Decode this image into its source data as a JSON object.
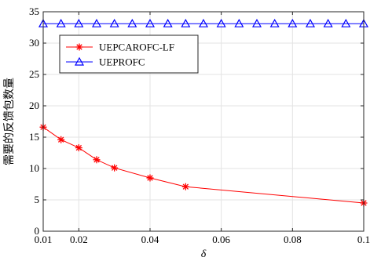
{
  "chart_data": {
    "type": "line",
    "xlabel": "δ",
    "ylabel": "需要的反馈包数量",
    "xlim": [
      0.01,
      0.1
    ],
    "ylim": [
      0,
      35
    ],
    "xticks": [
      0.01,
      0.02,
      0.04,
      0.06,
      0.08,
      0.1
    ],
    "xtick_labels": [
      "0.01",
      "0.02",
      "0.04",
      "0.06",
      "0.08",
      "0.1"
    ],
    "yticks": [
      0,
      5,
      10,
      15,
      20,
      25,
      30,
      35
    ],
    "ytick_labels": [
      "0",
      "5",
      "10",
      "15",
      "20",
      "25",
      "30",
      "35"
    ],
    "grid": true,
    "legend_position": "top-left",
    "series": [
      {
        "name": "UEPCAROFC-LF",
        "color": "#ff0000",
        "marker": "asterisk",
        "x": [
          0.01,
          0.015,
          0.02,
          0.025,
          0.03,
          0.04,
          0.05,
          0.1
        ],
        "y": [
          16.6,
          14.6,
          13.3,
          11.4,
          10.1,
          8.5,
          7.1,
          4.5
        ]
      },
      {
        "name": "UEPROFC",
        "color": "#0000ff",
        "marker": "triangle",
        "x": [
          0.01,
          0.015,
          0.02,
          0.025,
          0.03,
          0.035,
          0.04,
          0.045,
          0.05,
          0.055,
          0.06,
          0.065,
          0.07,
          0.075,
          0.08,
          0.085,
          0.09,
          0.095,
          0.1
        ],
        "y": [
          33.1,
          33.1,
          33.1,
          33.1,
          33.1,
          33.1,
          33.1,
          33.1,
          33.1,
          33.1,
          33.1,
          33.1,
          33.1,
          33.1,
          33.1,
          33.1,
          33.1,
          33.1,
          33.1
        ]
      }
    ]
  }
}
